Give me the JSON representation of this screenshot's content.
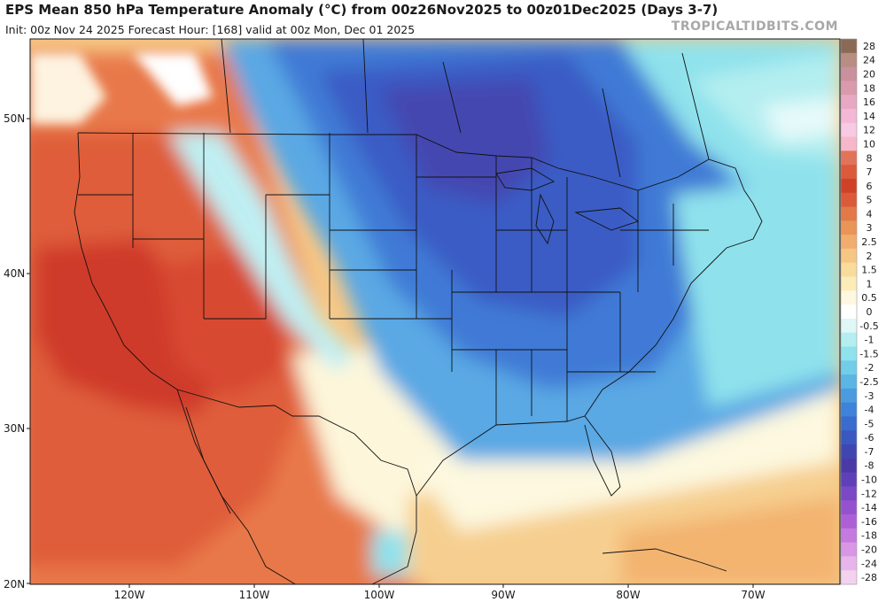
{
  "header": {
    "title": "EPS Mean 850 hPa Temperature Anomaly (°C) from 00z26Nov2025 to 00z01Dec2025 (Days 3-7)",
    "subtitle": "Init: 00z Nov 24 2025   Forecast Hour: [168]   valid at 00z Mon, Dec 01 2025",
    "brand": "TROPICALTIDBITS.COM"
  },
  "axes": {
    "lat_labels": [
      "50N",
      "40N",
      "30N",
      "20N"
    ],
    "lon_labels": [
      "120W",
      "110W",
      "100W",
      "90W",
      "80W",
      "70W"
    ]
  },
  "colorbar": {
    "labels": [
      "28",
      "24",
      "20",
      "18",
      "16",
      "14",
      "12",
      "10",
      "8",
      "7",
      "6",
      "5",
      "4",
      "3",
      "2.5",
      "2",
      "1.5",
      "1",
      "0.5",
      "0",
      "-0.5",
      "-1",
      "-1.5",
      "-2",
      "-2.5",
      "-3",
      "-4",
      "-5",
      "-6",
      "-7",
      "-8",
      "-10",
      "-12",
      "-14",
      "-16",
      "-18",
      "-20",
      "-24",
      "-28"
    ],
    "colors": [
      "#8b6a55",
      "#b88d82",
      "#c9909e",
      "#d99aae",
      "#e8a8c3",
      "#f2b8d6",
      "#f7c9e3",
      "#f6b8c8",
      "#e2735a",
      "#dc5a3c",
      "#d0412a",
      "#db5a3a",
      "#e37848",
      "#eb9458",
      "#f1ad6e",
      "#f6c784",
      "#f9dc9c",
      "#fbecb8",
      "#fdf8df",
      "#ffffff",
      "#dff7f6",
      "#b4eef0",
      "#8fe2ec",
      "#72cde9",
      "#5bb6e6",
      "#4a9be0",
      "#3f82d9",
      "#3a6bce",
      "#3a58c0",
      "#4046b0",
      "#4a3aa6",
      "#6040b8",
      "#7b48c6",
      "#9552cf",
      "#ad60d6",
      "#c47ade",
      "#d897e4",
      "#e8b5ea",
      "#f3d2ef"
    ]
  },
  "map_colors": {
    "ocean_far": "#e87a4d",
    "warm_core": "#d23a2c",
    "warm_mid": "#e36a42",
    "warm_light": "#f09a5e",
    "warm_pale": "#f8c98d",
    "neutral": "#ffffff",
    "cool_pale": "#bfeff3",
    "cool_light": "#7fd4ea",
    "cool_mid": "#4e9fe0",
    "cool_deep": "#3a66cc",
    "cool_core": "#3d45ad"
  }
}
